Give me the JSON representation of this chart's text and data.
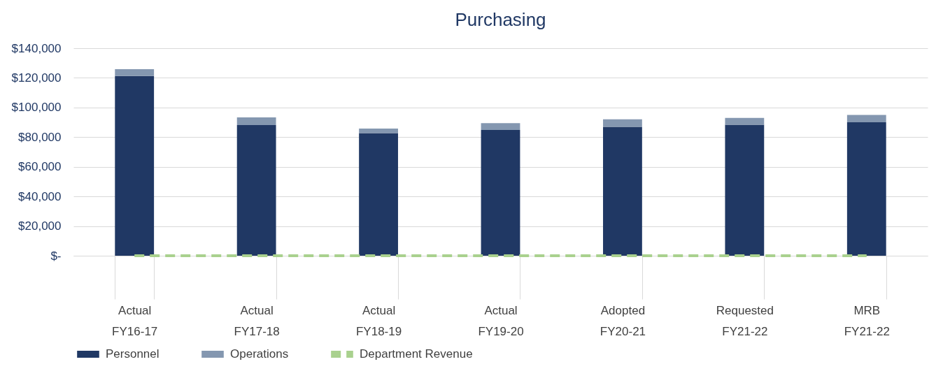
{
  "chart_data": {
    "type": "bar",
    "title": "Purchasing",
    "stacked": true,
    "categories": [
      "Actual\nFY16-17",
      "Actual\nFY17-18",
      "Actual\nFY18-19",
      "Actual\nFY19-20",
      "Adopted\nFY20-21",
      "Requested\nFY21-22",
      "MRB\nFY21-22"
    ],
    "series": [
      {
        "name": "Personnel",
        "color": "#203864",
        "values": [
          121300,
          88100,
          82700,
          84900,
          87000,
          88400,
          90000
        ]
      },
      {
        "name": "Operations",
        "color": "#8497b0",
        "values": [
          4500,
          5200,
          3100,
          4600,
          5000,
          4600,
          5000
        ]
      },
      {
        "name": "Department Revenue",
        "color": "#a9d18e",
        "type": "line",
        "line_style": "dashed",
        "values": [
          0,
          0,
          0,
          0,
          0,
          0,
          0
        ]
      }
    ],
    "ylim": [
      0,
      140000
    ],
    "yticks": [
      {
        "value": 0,
        "label": "$-"
      },
      {
        "value": 20000,
        "label": "$20,000"
      },
      {
        "value": 40000,
        "label": "$40,000"
      },
      {
        "value": 60000,
        "label": "$60,000"
      },
      {
        "value": 80000,
        "label": "$80,000"
      },
      {
        "value": 100000,
        "label": "$100,000"
      },
      {
        "value": 120000,
        "label": "$120,000"
      },
      {
        "value": 140000,
        "label": "$140,000"
      }
    ],
    "grid": "y",
    "legend": "bottom"
  }
}
